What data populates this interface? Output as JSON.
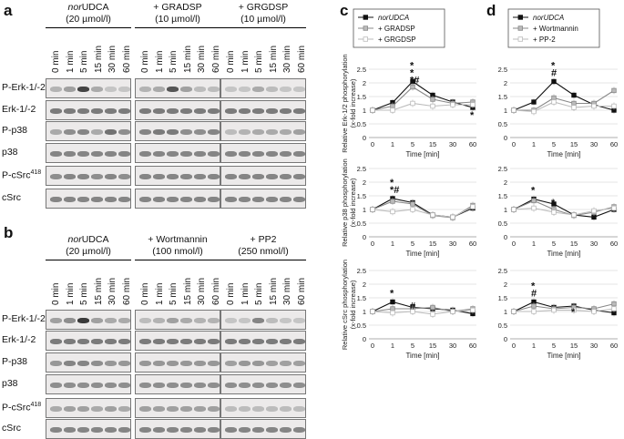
{
  "panels": {
    "a": "a",
    "b": "b",
    "c": "c",
    "d": "d"
  },
  "lanes": [
    "0 min",
    "1 min",
    "5 min",
    "15 min",
    "30 min",
    "60 min"
  ],
  "panel_a": {
    "conditions": [
      {
        "l1": "norUDCA",
        "l2": "(20 µmol/l)"
      },
      {
        "l1": "+ GRADSP",
        "l2": "(10 µmol/l)"
      },
      {
        "l1": "+ GRGDSP",
        "l2": "(10 µmol/l)"
      }
    ],
    "rows": [
      "P-Erk-1/-2",
      "Erk-1/-2",
      "P-p38",
      "p38",
      "P-cSrc418",
      "cSrc"
    ]
  },
  "panel_b": {
    "conditions": [
      {
        "l1": "norUDCA",
        "l2": "(20 µmol/l)"
      },
      {
        "l1": "+ Wortmannin",
        "l2": "(100 nmol/l)"
      },
      {
        "l1": "+ PP2",
        "l2": "(250 nmol/l)"
      }
    ],
    "rows": [
      "P-Erk-1/-2",
      "Erk-1/-2",
      "P-p38",
      "p38",
      "P-cSrc418",
      "cSrc"
    ]
  },
  "chart_data": [
    {
      "type": "line",
      "id": "c1",
      "ylabel": "Relative Erk-1/2 phosphorylation (x-fold increase)",
      "xlabel": "Time [min]",
      "x": [
        "0",
        "1",
        "5",
        "15",
        "30",
        "60"
      ],
      "ylim": [
        0,
        2.5
      ],
      "yticks": [
        "0",
        "0.5",
        "1",
        "1.5",
        "2",
        "2.5"
      ],
      "legend": [
        "norUDCA",
        "+ GRADSP",
        "+ GRGDSP"
      ],
      "series": [
        {
          "name": "norUDCA",
          "values": [
            1,
            1.28,
            2.05,
            1.55,
            1.3,
            1.1
          ]
        },
        {
          "name": "+ GRADSP",
          "values": [
            1,
            1.15,
            1.85,
            1.4,
            1.25,
            1.3
          ]
        },
        {
          "name": "+ GRGDSP",
          "values": [
            1,
            1.0,
            1.25,
            1.15,
            1.2,
            1.2
          ]
        }
      ],
      "annotations": [
        {
          "x": 2,
          "text": "*"
        },
        {
          "x": 2,
          "text": "*"
        },
        {
          "x": 2,
          "text": "*#"
        },
        {
          "x": 5,
          "text": "*"
        }
      ]
    },
    {
      "type": "line",
      "id": "c2",
      "ylabel": "Relative p38 phosphorylation (x-fold increase)",
      "xlabel": "Time [min]",
      "x": [
        "0",
        "1",
        "5",
        "15",
        "30",
        "60"
      ],
      "ylim": [
        0,
        2.5
      ],
      "yticks": [
        "0",
        "0.5",
        "1",
        "1.5",
        "2",
        "2.5"
      ],
      "series": [
        {
          "name": "norUDCA",
          "values": [
            1,
            1.4,
            1.25,
            0.8,
            0.72,
            1.05
          ]
        },
        {
          "name": "+ GRADSP",
          "values": [
            1,
            1.3,
            1.2,
            0.78,
            0.7,
            1.15
          ]
        },
        {
          "name": "+ GRGDSP",
          "values": [
            1,
            0.92,
            1.0,
            0.8,
            0.72,
            1.1
          ]
        }
      ],
      "annotations": [
        {
          "x": 1,
          "text": "*"
        },
        {
          "x": 1,
          "text": "*#"
        }
      ]
    },
    {
      "type": "line",
      "id": "c3",
      "ylabel": "Relative cSrc phosphorylation (x-fold increase)",
      "xlabel": "Time [min]",
      "x": [
        "0",
        "1",
        "5",
        "15",
        "30",
        "60"
      ],
      "ylim": [
        0,
        2.5
      ],
      "yticks": [
        "0",
        "0.5",
        "1",
        "1.5",
        "2",
        "2.5"
      ],
      "series": [
        {
          "name": "norUDCA",
          "values": [
            1,
            1.35,
            1.15,
            1.1,
            1.05,
            0.92
          ]
        },
        {
          "name": "+ GRADSP",
          "values": [
            1,
            1.1,
            1.1,
            1.15,
            1.0,
            1.1
          ]
        },
        {
          "name": "+ GRGDSP",
          "values": [
            1,
            0.95,
            1.0,
            0.9,
            1.0,
            1.05
          ]
        }
      ],
      "annotations": [
        {
          "x": 1,
          "text": "*"
        },
        {
          "x": 2,
          "text": "#"
        }
      ]
    },
    {
      "type": "line",
      "id": "d1",
      "ylabel": "",
      "xlabel": "Time [min]",
      "x": [
        "0",
        "1",
        "5",
        "15",
        "30",
        "60"
      ],
      "ylim": [
        0,
        2.5
      ],
      "yticks": [
        "0",
        "0.5",
        "1",
        "1.5",
        "2",
        "2.5"
      ],
      "legend": [
        "norUDCA",
        "+ Wortmannin",
        "+ PP-2"
      ],
      "series": [
        {
          "name": "norUDCA",
          "values": [
            1,
            1.3,
            2.05,
            1.55,
            1.2,
            1.0
          ]
        },
        {
          "name": "+ Wortmannin",
          "values": [
            1,
            1.0,
            1.45,
            1.25,
            1.25,
            1.72
          ]
        },
        {
          "name": "+ PP-2",
          "values": [
            1,
            0.95,
            1.3,
            1.1,
            1.15,
            1.15
          ]
        }
      ],
      "annotations": [
        {
          "x": 2,
          "text": "*"
        },
        {
          "x": 2,
          "text": "#"
        }
      ]
    },
    {
      "type": "line",
      "id": "d2",
      "ylabel": "",
      "xlabel": "Time [min]",
      "x": [
        "0",
        "1",
        "5",
        "15",
        "30",
        "60"
      ],
      "ylim": [
        0,
        2.5
      ],
      "yticks": [
        "0",
        "0.5",
        "1",
        "1.5",
        "2",
        "2.5"
      ],
      "series": [
        {
          "name": "norUDCA",
          "values": [
            1,
            1.38,
            1.2,
            0.8,
            0.72,
            1.0
          ]
        },
        {
          "name": "+ Wortmannin",
          "values": [
            1,
            1.32,
            1.0,
            0.78,
            0.9,
            1.1
          ]
        },
        {
          "name": "+ PP-2",
          "values": [
            1,
            1.05,
            0.9,
            0.8,
            0.95,
            1.05
          ]
        }
      ],
      "annotations": [
        {
          "x": 1,
          "text": "*"
        },
        {
          "x": 2,
          "text": "*"
        }
      ]
    },
    {
      "type": "line",
      "id": "d3",
      "ylabel": "",
      "xlabel": "Time [min]",
      "x": [
        "0",
        "1",
        "5",
        "15",
        "30",
        "60"
      ],
      "ylim": [
        0,
        2.5
      ],
      "yticks": [
        "0",
        "0.5",
        "1",
        "1.5",
        "2",
        "2.5"
      ],
      "series": [
        {
          "name": "norUDCA",
          "values": [
            1,
            1.35,
            1.15,
            1.2,
            1.05,
            0.95
          ]
        },
        {
          "name": "+ Wortmannin",
          "values": [
            1,
            1.2,
            1.1,
            1.15,
            1.1,
            1.28
          ]
        },
        {
          "name": "+ PP-2",
          "values": [
            1,
            1.0,
            1.05,
            1.05,
            1.0,
            1.1
          ]
        }
      ],
      "annotations": [
        {
          "x": 1,
          "text": "*"
        },
        {
          "x": 1,
          "text": "#"
        },
        {
          "x": 3,
          "text": "*"
        }
      ]
    }
  ],
  "colors": {
    "s0": "#111111",
    "s1": "#888888",
    "s2": "#bbbbbb"
  }
}
